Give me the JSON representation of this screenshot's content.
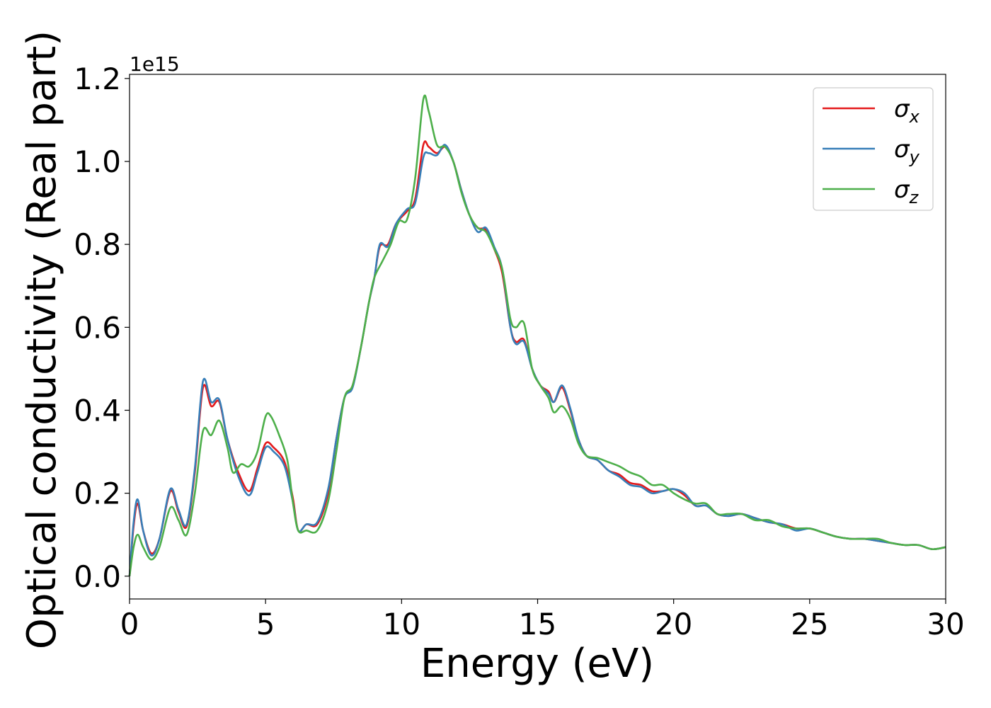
{
  "chart_data": {
    "type": "line",
    "xlabel": "Energy (eV)",
    "ylabel": "Optical conductivity (Real part)",
    "y_offset_label": "1e15",
    "xlim": [
      0,
      30
    ],
    "ylim": [
      -0.055,
      1.21
    ],
    "xticks": [
      0,
      5,
      10,
      15,
      20,
      25,
      30
    ],
    "xtick_labels": [
      "0",
      "5",
      "10",
      "15",
      "20",
      "25",
      "30"
    ],
    "yticks": [
      0.0,
      0.2,
      0.4,
      0.6,
      0.8,
      1.0,
      1.2
    ],
    "ytick_labels": [
      "0.0",
      "0.2",
      "0.4",
      "0.6",
      "0.8",
      "1.0",
      "1.2"
    ],
    "grid": false,
    "legend_position": "top-right",
    "series": [
      {
        "name": "σx",
        "legend_base": "σ",
        "legend_sub": "x",
        "color": "#e41a1c",
        "points": [
          [
            0,
            0
          ],
          [
            0.15,
            0.12
          ],
          [
            0.3,
            0.175
          ],
          [
            0.5,
            0.11
          ],
          [
            0.8,
            0.055
          ],
          [
            1.1,
            0.09
          ],
          [
            1.5,
            0.205
          ],
          [
            1.8,
            0.155
          ],
          [
            2.1,
            0.12
          ],
          [
            2.4,
            0.25
          ],
          [
            2.7,
            0.455
          ],
          [
            3.0,
            0.41
          ],
          [
            3.3,
            0.42
          ],
          [
            3.6,
            0.33
          ],
          [
            4.0,
            0.25
          ],
          [
            4.4,
            0.205
          ],
          [
            4.7,
            0.26
          ],
          [
            5.0,
            0.32
          ],
          [
            5.3,
            0.31
          ],
          [
            5.7,
            0.275
          ],
          [
            6.0,
            0.19
          ],
          [
            6.2,
            0.11
          ],
          [
            6.5,
            0.125
          ],
          [
            6.9,
            0.125
          ],
          [
            7.3,
            0.2
          ],
          [
            7.6,
            0.33
          ],
          [
            7.9,
            0.43
          ],
          [
            8.2,
            0.46
          ],
          [
            8.5,
            0.55
          ],
          [
            8.8,
            0.66
          ],
          [
            9.0,
            0.72
          ],
          [
            9.2,
            0.795
          ],
          [
            9.5,
            0.8
          ],
          [
            9.8,
            0.85
          ],
          [
            10.2,
            0.88
          ],
          [
            10.5,
            0.91
          ],
          [
            10.8,
            1.04
          ],
          [
            11.0,
            1.035
          ],
          [
            11.3,
            1.02
          ],
          [
            11.6,
            1.035
          ],
          [
            11.9,
            1.0
          ],
          [
            12.2,
            0.93
          ],
          [
            12.5,
            0.87
          ],
          [
            12.8,
            0.84
          ],
          [
            13.1,
            0.835
          ],
          [
            13.4,
            0.79
          ],
          [
            13.7,
            0.73
          ],
          [
            14.0,
            0.6
          ],
          [
            14.2,
            0.565
          ],
          [
            14.5,
            0.57
          ],
          [
            14.8,
            0.5
          ],
          [
            15.1,
            0.46
          ],
          [
            15.4,
            0.445
          ],
          [
            15.6,
            0.42
          ],
          [
            15.9,
            0.455
          ],
          [
            16.2,
            0.4
          ],
          [
            16.5,
            0.33
          ],
          [
            16.8,
            0.29
          ],
          [
            17.2,
            0.28
          ],
          [
            17.6,
            0.255
          ],
          [
            18.0,
            0.245
          ],
          [
            18.4,
            0.225
          ],
          [
            18.8,
            0.22
          ],
          [
            19.2,
            0.205
          ],
          [
            19.6,
            0.205
          ],
          [
            20.0,
            0.21
          ],
          [
            20.4,
            0.195
          ],
          [
            20.8,
            0.17
          ],
          [
            21.2,
            0.17
          ],
          [
            21.6,
            0.15
          ],
          [
            22.0,
            0.145
          ],
          [
            22.5,
            0.15
          ],
          [
            23.0,
            0.14
          ],
          [
            23.5,
            0.13
          ],
          [
            24.0,
            0.125
          ],
          [
            24.5,
            0.115
          ],
          [
            25.0,
            0.115
          ],
          [
            25.5,
            0.105
          ],
          [
            26.0,
            0.095
          ],
          [
            26.5,
            0.09
          ],
          [
            27.0,
            0.09
          ],
          [
            27.5,
            0.085
          ],
          [
            28.0,
            0.08
          ],
          [
            28.5,
            0.075
          ],
          [
            29.0,
            0.075
          ],
          [
            29.5,
            0.065
          ],
          [
            30.0,
            0.07
          ]
        ]
      },
      {
        "name": "σy",
        "legend_base": "σ",
        "legend_sub": "y",
        "color": "#377eb8",
        "points": [
          [
            0,
            0
          ],
          [
            0.15,
            0.13
          ],
          [
            0.3,
            0.185
          ],
          [
            0.5,
            0.11
          ],
          [
            0.8,
            0.05
          ],
          [
            1.1,
            0.09
          ],
          [
            1.5,
            0.21
          ],
          [
            1.8,
            0.16
          ],
          [
            2.1,
            0.125
          ],
          [
            2.4,
            0.26
          ],
          [
            2.7,
            0.47
          ],
          [
            3.0,
            0.42
          ],
          [
            3.3,
            0.425
          ],
          [
            3.6,
            0.33
          ],
          [
            4.0,
            0.24
          ],
          [
            4.4,
            0.195
          ],
          [
            4.7,
            0.25
          ],
          [
            5.0,
            0.31
          ],
          [
            5.3,
            0.3
          ],
          [
            5.7,
            0.265
          ],
          [
            6.0,
            0.18
          ],
          [
            6.2,
            0.11
          ],
          [
            6.5,
            0.125
          ],
          [
            6.9,
            0.13
          ],
          [
            7.3,
            0.21
          ],
          [
            7.6,
            0.33
          ],
          [
            7.9,
            0.43
          ],
          [
            8.2,
            0.455
          ],
          [
            8.5,
            0.55
          ],
          [
            8.8,
            0.66
          ],
          [
            9.0,
            0.72
          ],
          [
            9.2,
            0.8
          ],
          [
            9.5,
            0.795
          ],
          [
            9.8,
            0.85
          ],
          [
            10.2,
            0.885
          ],
          [
            10.5,
            0.9
          ],
          [
            10.8,
            1.01
          ],
          [
            11.0,
            1.02
          ],
          [
            11.3,
            1.015
          ],
          [
            11.6,
            1.04
          ],
          [
            11.9,
            1.0
          ],
          [
            12.2,
            0.93
          ],
          [
            12.5,
            0.87
          ],
          [
            12.8,
            0.83
          ],
          [
            13.1,
            0.84
          ],
          [
            13.4,
            0.795
          ],
          [
            13.7,
            0.74
          ],
          [
            14.0,
            0.6
          ],
          [
            14.2,
            0.56
          ],
          [
            14.5,
            0.565
          ],
          [
            14.8,
            0.5
          ],
          [
            15.1,
            0.46
          ],
          [
            15.4,
            0.44
          ],
          [
            15.6,
            0.42
          ],
          [
            15.9,
            0.46
          ],
          [
            16.2,
            0.405
          ],
          [
            16.5,
            0.33
          ],
          [
            16.8,
            0.29
          ],
          [
            17.2,
            0.28
          ],
          [
            17.6,
            0.255
          ],
          [
            18.0,
            0.24
          ],
          [
            18.4,
            0.22
          ],
          [
            18.8,
            0.215
          ],
          [
            19.2,
            0.2
          ],
          [
            19.6,
            0.205
          ],
          [
            20.0,
            0.21
          ],
          [
            20.4,
            0.2
          ],
          [
            20.8,
            0.17
          ],
          [
            21.2,
            0.17
          ],
          [
            21.6,
            0.15
          ],
          [
            22.0,
            0.145
          ],
          [
            22.5,
            0.15
          ],
          [
            23.0,
            0.14
          ],
          [
            23.5,
            0.13
          ],
          [
            24.0,
            0.125
          ],
          [
            24.5,
            0.11
          ],
          [
            25.0,
            0.115
          ],
          [
            25.5,
            0.105
          ],
          [
            26.0,
            0.095
          ],
          [
            26.5,
            0.09
          ],
          [
            27.0,
            0.09
          ],
          [
            27.5,
            0.085
          ],
          [
            28.0,
            0.08
          ],
          [
            28.5,
            0.075
          ],
          [
            29.0,
            0.075
          ],
          [
            29.5,
            0.065
          ],
          [
            30.0,
            0.07
          ]
        ]
      },
      {
        "name": "σz",
        "legend_base": "σ",
        "legend_sub": "z",
        "color": "#4daf4a",
        "points": [
          [
            0,
            0
          ],
          [
            0.15,
            0.07
          ],
          [
            0.3,
            0.1
          ],
          [
            0.5,
            0.07
          ],
          [
            0.8,
            0.04
          ],
          [
            1.1,
            0.07
          ],
          [
            1.5,
            0.165
          ],
          [
            1.8,
            0.135
          ],
          [
            2.1,
            0.1
          ],
          [
            2.4,
            0.2
          ],
          [
            2.7,
            0.35
          ],
          [
            3.0,
            0.34
          ],
          [
            3.3,
            0.375
          ],
          [
            3.6,
            0.31
          ],
          [
            3.8,
            0.25
          ],
          [
            4.1,
            0.27
          ],
          [
            4.4,
            0.265
          ],
          [
            4.7,
            0.3
          ],
          [
            5.0,
            0.385
          ],
          [
            5.2,
            0.385
          ],
          [
            5.5,
            0.34
          ],
          [
            5.8,
            0.28
          ],
          [
            6.0,
            0.18
          ],
          [
            6.2,
            0.11
          ],
          [
            6.5,
            0.11
          ],
          [
            6.9,
            0.11
          ],
          [
            7.3,
            0.18
          ],
          [
            7.6,
            0.3
          ],
          [
            7.9,
            0.43
          ],
          [
            8.2,
            0.46
          ],
          [
            8.5,
            0.55
          ],
          [
            8.8,
            0.66
          ],
          [
            9.0,
            0.72
          ],
          [
            9.3,
            0.76
          ],
          [
            9.6,
            0.8
          ],
          [
            9.9,
            0.855
          ],
          [
            10.2,
            0.86
          ],
          [
            10.5,
            0.96
          ],
          [
            10.8,
            1.15
          ],
          [
            11.0,
            1.12
          ],
          [
            11.3,
            1.04
          ],
          [
            11.6,
            1.035
          ],
          [
            11.9,
            1.0
          ],
          [
            12.2,
            0.925
          ],
          [
            12.5,
            0.87
          ],
          [
            12.8,
            0.84
          ],
          [
            13.1,
            0.83
          ],
          [
            13.4,
            0.79
          ],
          [
            13.7,
            0.74
          ],
          [
            14.0,
            0.62
          ],
          [
            14.2,
            0.6
          ],
          [
            14.5,
            0.61
          ],
          [
            14.8,
            0.5
          ],
          [
            15.1,
            0.46
          ],
          [
            15.4,
            0.43
          ],
          [
            15.6,
            0.395
          ],
          [
            15.9,
            0.41
          ],
          [
            16.2,
            0.38
          ],
          [
            16.5,
            0.32
          ],
          [
            16.8,
            0.29
          ],
          [
            17.2,
            0.285
          ],
          [
            17.6,
            0.275
          ],
          [
            18.0,
            0.265
          ],
          [
            18.4,
            0.25
          ],
          [
            18.8,
            0.24
          ],
          [
            19.2,
            0.22
          ],
          [
            19.6,
            0.22
          ],
          [
            20.0,
            0.2
          ],
          [
            20.4,
            0.185
          ],
          [
            20.8,
            0.175
          ],
          [
            21.2,
            0.175
          ],
          [
            21.6,
            0.15
          ],
          [
            22.0,
            0.15
          ],
          [
            22.5,
            0.15
          ],
          [
            23.0,
            0.135
          ],
          [
            23.5,
            0.135
          ],
          [
            24.0,
            0.12
          ],
          [
            24.5,
            0.115
          ],
          [
            25.0,
            0.115
          ],
          [
            25.5,
            0.105
          ],
          [
            26.0,
            0.095
          ],
          [
            26.5,
            0.09
          ],
          [
            27.0,
            0.09
          ],
          [
            27.5,
            0.09
          ],
          [
            28.0,
            0.08
          ],
          [
            28.5,
            0.075
          ],
          [
            29.0,
            0.075
          ],
          [
            29.5,
            0.065
          ],
          [
            30.0,
            0.07
          ]
        ]
      }
    ]
  }
}
